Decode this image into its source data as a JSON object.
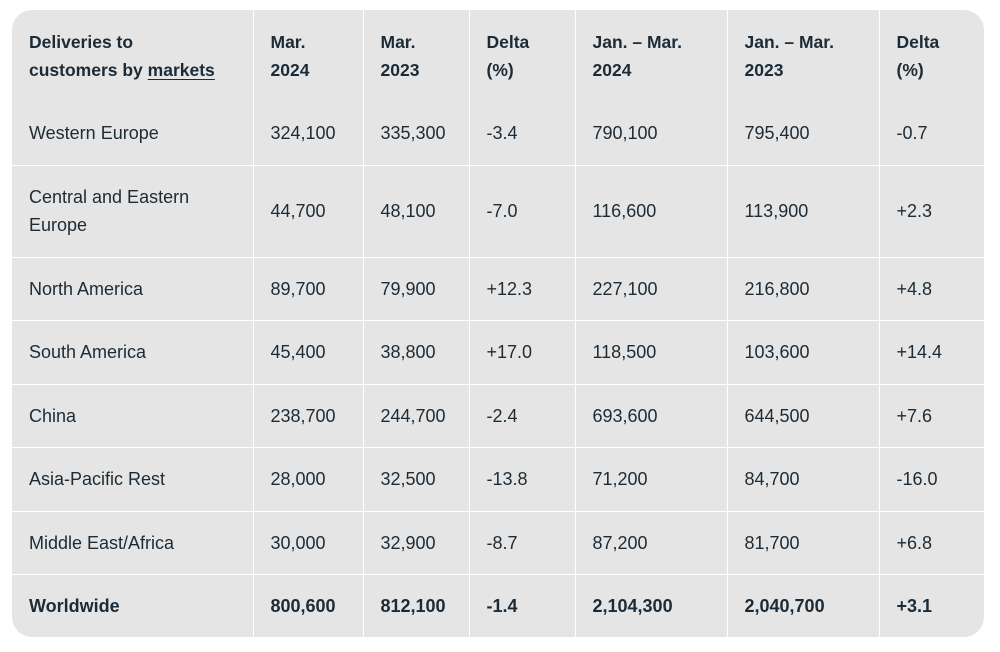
{
  "table": {
    "header": {
      "market": {
        "line1": "Deliveries to",
        "line2_prefix": "customers by ",
        "line2_link": "markets"
      },
      "mar2024": {
        "line1": "Mar.",
        "line2": "2024"
      },
      "mar2023": {
        "line1": "Mar.",
        "line2": "2023"
      },
      "delta1": {
        "line1": "Delta",
        "line2": "(%)"
      },
      "ytd2024": {
        "line1": "Jan. – Mar.",
        "line2": "2024"
      },
      "ytd2023": {
        "line1": "Jan. – Mar.",
        "line2": "2023"
      },
      "delta2": {
        "line1": "Delta",
        "line2": "(%)"
      }
    },
    "rows": [
      {
        "market": "Western Europe",
        "mar2024": "324,100",
        "mar2023": "335,300",
        "delta1": "-3.4",
        "ytd2024": "790,100",
        "ytd2023": "795,400",
        "delta2": "-0.7"
      },
      {
        "market": "Central and Eastern Europe",
        "mar2024": "44,700",
        "mar2023": "48,100",
        "delta1": "-7.0",
        "ytd2024": "116,600",
        "ytd2023": "113,900",
        "delta2": "+2.3"
      },
      {
        "market": "North America",
        "mar2024": "89,700",
        "mar2023": "79,900",
        "delta1": "+12.3",
        "ytd2024": "227,100",
        "ytd2023": "216,800",
        "delta2": "+4.8"
      },
      {
        "market": "South America",
        "mar2024": "45,400",
        "mar2023": "38,800",
        "delta1": "+17.0",
        "ytd2024": "118,500",
        "ytd2023": "103,600",
        "delta2": "+14.4"
      },
      {
        "market": "China",
        "mar2024": "238,700",
        "mar2023": "244,700",
        "delta1": "-2.4",
        "ytd2024": "693,600",
        "ytd2023": "644,500",
        "delta2": "+7.6"
      },
      {
        "market": "Asia-Pacific Rest",
        "mar2024": "28,000",
        "mar2023": "32,500",
        "delta1": "-13.8",
        "ytd2024": "71,200",
        "ytd2023": "84,700",
        "delta2": "-16.0"
      },
      {
        "market": "Middle East/Africa",
        "mar2024": "30,000",
        "mar2023": "32,900",
        "delta1": "-8.7",
        "ytd2024": "87,200",
        "ytd2023": "81,700",
        "delta2": "+6.8"
      },
      {
        "market": "Worldwide",
        "mar2024": "800,600",
        "mar2023": "812,100",
        "delta1": "-1.4",
        "ytd2024": "2,104,300",
        "ytd2023": "2,040,700",
        "delta2": "+3.1"
      }
    ]
  }
}
